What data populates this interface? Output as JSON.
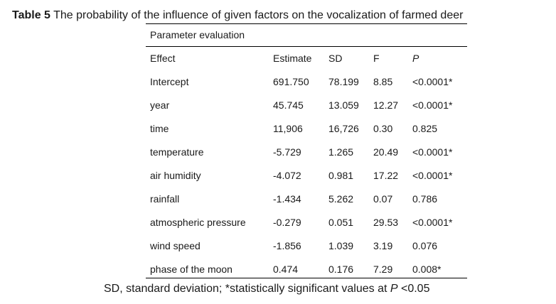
{
  "caption": {
    "label": "Table 5",
    "text": "The probability of the influence of given factors on the vocalization of farmed deer"
  },
  "section_title": "Parameter evaluation",
  "table": {
    "headers": {
      "effect": "Effect",
      "estimate": "Estimate",
      "sd": "SD",
      "f": "F",
      "p": "P"
    },
    "rows": [
      {
        "effect": "Intercept",
        "estimate": "691.750",
        "sd": "78.199",
        "f": "8.85",
        "p": "<0.0001*"
      },
      {
        "effect": "year",
        "estimate": "45.745",
        "sd": "13.059",
        "f": "12.27",
        "p": "<0.0001*"
      },
      {
        "effect": "time",
        "estimate": "11,906",
        "sd": "16,726",
        "f": "0.30",
        "p": "0.825"
      },
      {
        "effect": "temperature",
        "estimate": "-5.729",
        "sd": "1.265",
        "f": "20.49",
        "p": "<0.0001*"
      },
      {
        "effect": "air humidity",
        "estimate": "-4.072",
        "sd": "0.981",
        "f": "17.22",
        "p": "<0.0001*"
      },
      {
        "effect": "rainfall",
        "estimate": "-1.434",
        "sd": "5.262",
        "f": "0.07",
        "p": "0.786"
      },
      {
        "effect": "atmospheric pressure",
        "estimate": "-0.279",
        "sd": "0.051",
        "f": "29.53",
        "p": "<0.0001*"
      },
      {
        "effect": "wind speed",
        "estimate": "-1.856",
        "sd": "1.039",
        "f": "3.19",
        "p": "0.076"
      },
      {
        "effect": "phase of the moon",
        "estimate": "0.474",
        "sd": "0.176",
        "f": "7.29",
        "p": "0.008*"
      }
    ]
  },
  "footnote": {
    "prefix": "SD, standard deviation; *statistically significant values at ",
    "italic": "P",
    "suffix": " <0.05"
  }
}
